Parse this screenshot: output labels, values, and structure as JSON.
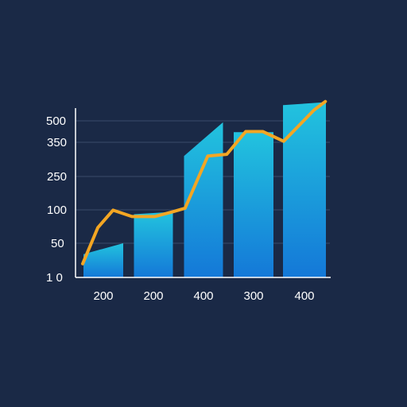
{
  "colors": {
    "background": "#1a2946",
    "bar_top": "#22c3de",
    "bar_bottom": "#1478d8",
    "line": "#f3a623",
    "axis": "#ffffff",
    "grid": "#3a4a6a"
  },
  "chart_data": {
    "type": "bar",
    "title": "",
    "xlabel": "",
    "ylabel": "",
    "grid": true,
    "y_tick_labels": [
      "1 0",
      "50",
      "100",
      "250",
      "350",
      "500"
    ],
    "x_tick_labels": [
      "200",
      "200",
      "400",
      "300",
      "400"
    ],
    "bars": [
      {
        "index": 0,
        "start": 0.68,
        "end": 1.0,
        "note": "first bar rises toward its right edge"
      },
      {
        "index": 1,
        "start": 1.87,
        "end": 1.94
      },
      {
        "index": 2,
        "start": 3.6,
        "end": 4.93
      },
      {
        "index": 3,
        "start": 4.47,
        "end": 4.47
      },
      {
        "index": 4,
        "start": 5.73,
        "end": 5.87
      }
    ],
    "series": [
      {
        "type": "line",
        "points": [
          [
            0,
            0.4
          ],
          [
            0.4,
            1.47
          ],
          [
            0.8,
            1.99
          ],
          [
            1.3,
            1.8
          ],
          [
            1.9,
            1.8
          ],
          [
            2.4,
            1.95
          ],
          [
            2.7,
            2.05
          ],
          [
            3.3,
            3.6
          ],
          [
            3.8,
            3.65
          ],
          [
            4.3,
            4.5
          ],
          [
            4.75,
            4.5
          ],
          [
            5.3,
            4.05
          ],
          [
            6.1,
            5.5
          ],
          [
            6.4,
            5.9
          ]
        ]
      }
    ]
  }
}
